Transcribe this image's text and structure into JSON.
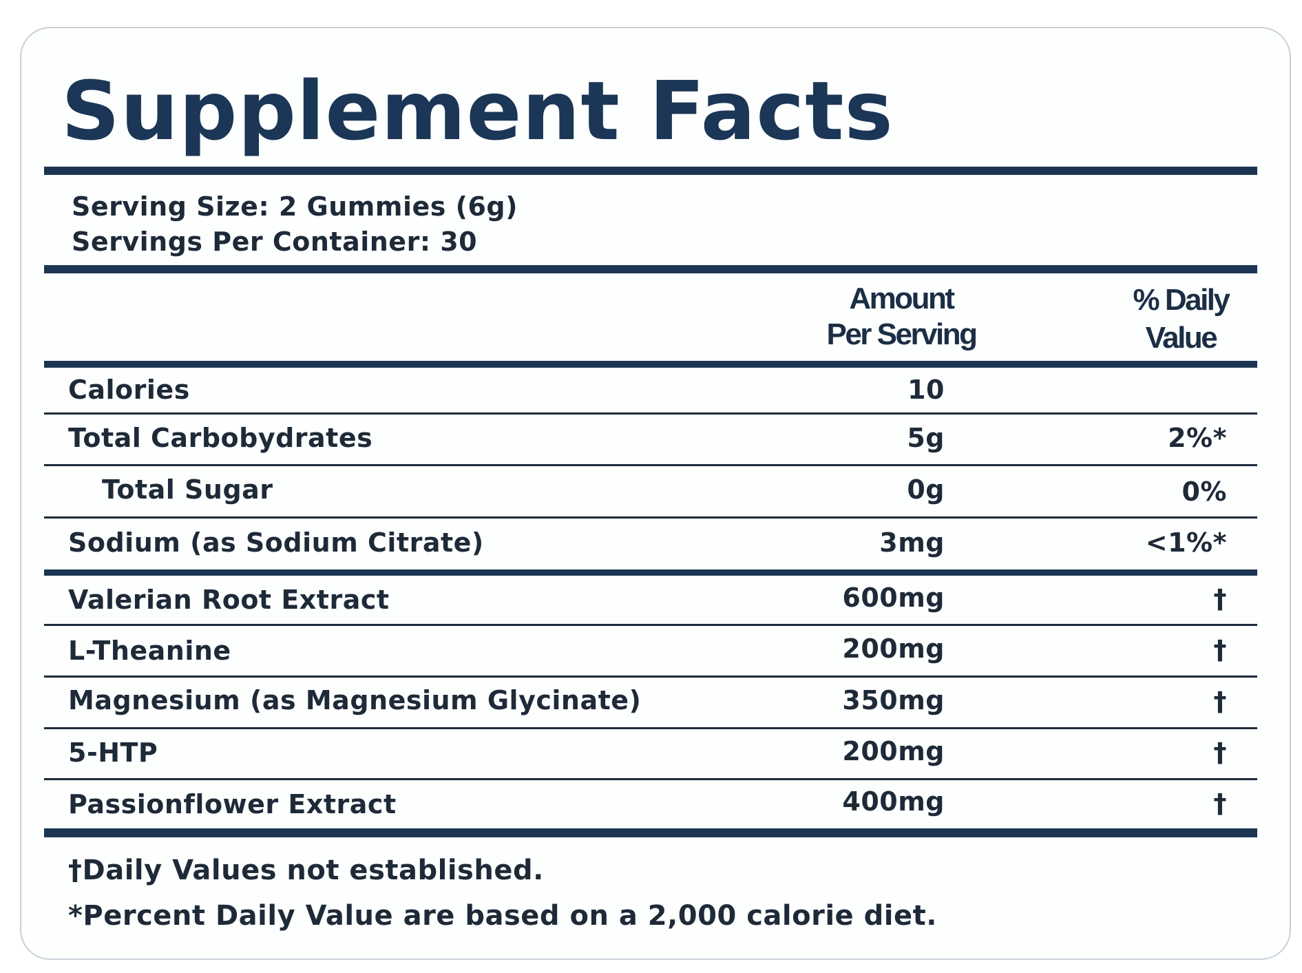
{
  "title": "Supplement Facts",
  "serving_size": "Serving Size: 2 Gummies (6g)",
  "servings_per_container": "Servings Per Container: 30",
  "headers": {
    "amount_line1": "Amount",
    "amount_line2": "Per Serving",
    "dv_line1": "% Daily",
    "dv_line2": "Value"
  },
  "rows": [
    {
      "label": "Calories",
      "amount": "10",
      "dv": ""
    },
    {
      "label": "Total Carbobydrates",
      "amount": "5g",
      "dv": "2%*"
    },
    {
      "label": "Total Sugar",
      "amount": "0g",
      "dv": "0%"
    },
    {
      "label": "Sodium (as Sodium Citrate)",
      "amount": "3mg",
      "dv": "<1%*"
    },
    {
      "label": "Valerian Root Extract",
      "amount": "600mg",
      "dv": "†"
    },
    {
      "label": "L-Theanine",
      "amount": "200mg",
      "dv": "†"
    },
    {
      "label": "Magnesium (as Magnesium Glycinate)",
      "amount": "350mg",
      "dv": "†"
    },
    {
      "label": "5-HTP",
      "amount": "200mg",
      "dv": "†"
    },
    {
      "label": "Passionflower Extract",
      "amount": "400mg",
      "dv": "†"
    }
  ],
  "footnotes": [
    "†Daily Values not established.",
    "*Percent Daily Value are based on a 2,000 calorie diet."
  ],
  "colors": {
    "title": "#1b3656",
    "rule": "#1b3553",
    "text": "#1e2a38"
  }
}
